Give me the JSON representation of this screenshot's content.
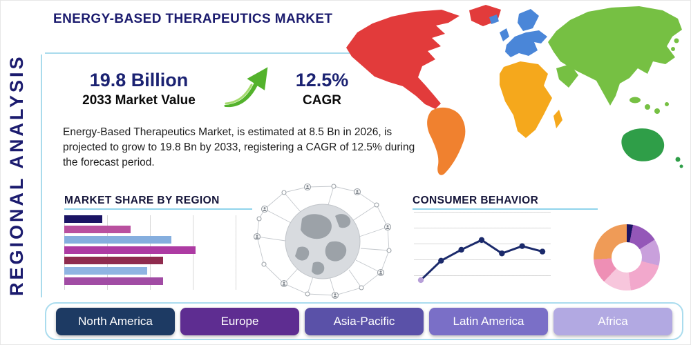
{
  "header": {
    "title": "ENERGY-BASED THERAPEUTICS MARKET"
  },
  "side": {
    "vertical_label": "REGIONAL ANALYSIS"
  },
  "stats": {
    "market_value": "19.8 Billion",
    "market_value_caption": "2033 Market Value",
    "cagr_value": "12.5%",
    "cagr_caption": "CAGR",
    "description": "Energy-Based Therapeutics Market, is estimated at 8.5 Bn in 2026, is projected to grow to 19.8 Bn by 2033, registering a CAGR of 12.5% during the forecast period.",
    "accent_navy": "#1b2272",
    "accent_green": "#53b22c"
  },
  "market_share": {
    "heading": "MARKET SHARE BY REGION"
  },
  "consumer_behavior": {
    "heading": "CONSUMER BEHAVIOR"
  },
  "icons": {
    "growth_arrow": "curved-up-right-growth-arrow",
    "globe_network": "connected-globe-network"
  },
  "region_buttons": [
    {
      "label": "North America",
      "color": "#1d3a63"
    },
    {
      "label": "Europe",
      "color": "#5e2d91"
    },
    {
      "label": "Asia-Pacific",
      "color": "#5a51a8"
    },
    {
      "label": "Latin America",
      "color": "#7a6fc7"
    },
    {
      "label": "Africa",
      "color": "#b2a9e2"
    }
  ],
  "map": {
    "regions": [
      {
        "name": "North America",
        "color": "#e23b3b"
      },
      {
        "name": "South America",
        "color": "#f0812f"
      },
      {
        "name": "Europe",
        "color": "#4a86d8"
      },
      {
        "name": "Africa",
        "color": "#f5a81c"
      },
      {
        "name": "Asia",
        "color": "#76c043"
      },
      {
        "name": "Australia",
        "color": "#2f9e48"
      }
    ]
  },
  "chart_data": [
    {
      "type": "bar",
      "orientation": "horizontal",
      "title": "MARKET SHARE BY REGION",
      "values": [
        19,
        33,
        53,
        65,
        49,
        41,
        49
      ],
      "colors": [
        "#1b1464",
        "#b9509f",
        "#85aede",
        "#ad3ba3",
        "#8f2b4e",
        "#8fb4e2",
        "#a14ca4"
      ],
      "xlim": [
        0,
        100
      ],
      "grid": true,
      "note": "bars unlabeled; lengths are percent of chart width estimated from pixels"
    },
    {
      "type": "line",
      "title": "CONSUMER BEHAVIOR",
      "x": [
        1,
        2,
        3,
        4,
        5,
        6,
        7
      ],
      "y": [
        8,
        40,
        58,
        74,
        52,
        64,
        55
      ],
      "ylim": [
        0,
        100
      ],
      "line_color": "#1b2a6b",
      "first_point_color": "#b79fd8",
      "grid": true,
      "note": "axes unlabeled; values estimated from pixel positions"
    },
    {
      "type": "pie",
      "style": "donut",
      "values": [
        3,
        13,
        13,
        19,
        14,
        12,
        26
      ],
      "colors": [
        "#1b1464",
        "#9457b8",
        "#c9a0dc",
        "#f2a8cc",
        "#f7c6dc",
        "#ee8fb5",
        "#ef9b57"
      ],
      "note": "segments unlabeled; proportions estimated clockwise from top"
    }
  ]
}
